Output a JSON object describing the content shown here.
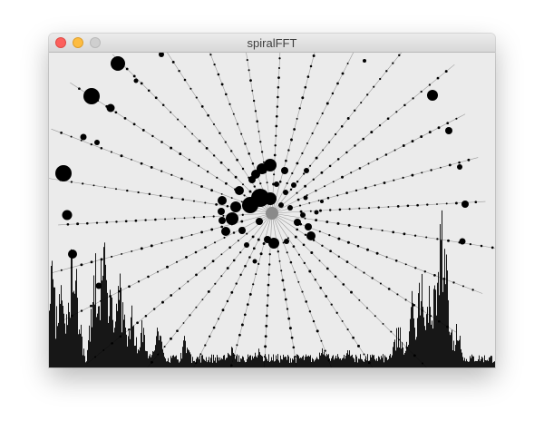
{
  "window": {
    "title": "spiralFFT"
  },
  "colors": {
    "canvas_background": "#ebebeb",
    "ink": "#000000",
    "close": "#fc605c",
    "minimize": "#fdbc40",
    "zoom": "#cfcfcf"
  },
  "visualization": {
    "ray_count": 30,
    "spectrum_bar_count": 492
  }
}
